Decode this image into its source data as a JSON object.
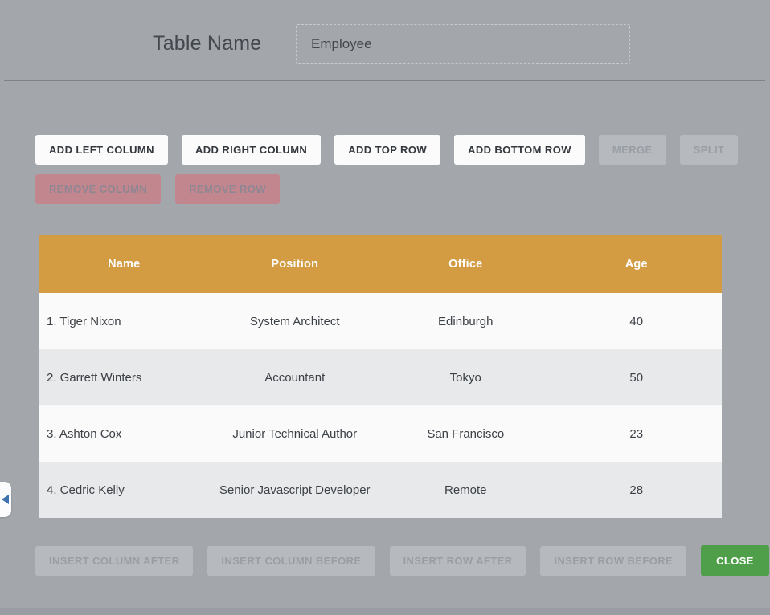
{
  "header": {
    "label": "Table Name",
    "input_value": "Employee"
  },
  "toolbar": {
    "row1": [
      {
        "label": "ADD LEFT COLUMN",
        "state": "enabled"
      },
      {
        "label": "ADD RIGHT COLUMN",
        "state": "enabled"
      },
      {
        "label": "ADD TOP ROW",
        "state": "enabled"
      },
      {
        "label": "ADD BOTTOM ROW",
        "state": "enabled"
      },
      {
        "label": "MERGE",
        "state": "disabled"
      },
      {
        "label": "SPLIT",
        "state": "disabled"
      }
    ],
    "row2": [
      {
        "label": "REMOVE COLUMN",
        "state": "danger"
      },
      {
        "label": "REMOVE ROW",
        "state": "danger"
      }
    ]
  },
  "table": {
    "columns": [
      "Name",
      "Position",
      "Office",
      "Age"
    ],
    "rows": [
      [
        "1. Tiger Nixon",
        "System Architect",
        "Edinburgh",
        "40"
      ],
      [
        "2. Garrett Winters",
        "Accountant",
        "Tokyo",
        "50"
      ],
      [
        "3. Ashton Cox",
        "Junior Technical Author",
        "San Francisco",
        "23"
      ],
      [
        "4. Cedric Kelly",
        "Senior Javascript Developer",
        "Remote",
        "28"
      ]
    ]
  },
  "footer": {
    "buttons": [
      {
        "label": "INSERT COLUMN AFTER",
        "state": "disabled"
      },
      {
        "label": "INSERT COLUMN BEFORE",
        "state": "disabled"
      },
      {
        "label": "INSERT ROW AFTER",
        "state": "disabled"
      },
      {
        "label": "INSERT ROW BEFORE",
        "state": "disabled"
      }
    ],
    "close_label": "CLOSE"
  },
  "side_tab": {
    "icon": "left-arrow"
  },
  "colors": {
    "background": "#a3a7ac",
    "header_accent": "#d39c42",
    "close_green": "#4f9e49",
    "danger_pink": "#c2868f",
    "arrow_blue": "#3e73ae"
  }
}
